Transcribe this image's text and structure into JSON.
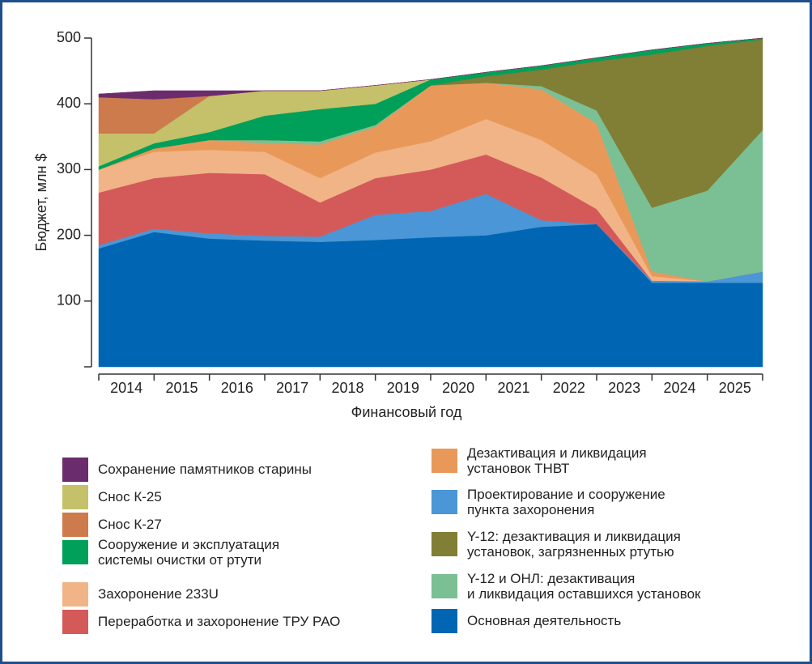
{
  "chart_data": {
    "type": "stacked_area",
    "xlabel": "Финансовый год",
    "ylabel": "Бюджет, млн $",
    "x": [
      2013.5,
      2014.5,
      2015.5,
      2016.5,
      2017.5,
      2018.5,
      2019.5,
      2020.5,
      2021.5,
      2022.5,
      2023.5,
      2024.5,
      2025.5
    ],
    "xlim": [
      2013.5,
      2025.5
    ],
    "xticks": [
      2014,
      2015,
      2016,
      2017,
      2018,
      2019,
      2020,
      2021,
      2022,
      2023,
      2024,
      2025
    ],
    "ylim": [
      0,
      500
    ],
    "yticks": [
      100,
      200,
      300,
      400,
      500
    ],
    "series": [
      {
        "name": "Основная деятельность",
        "color": "#0066b3",
        "values": [
          180,
          205,
          195,
          192,
          190,
          193,
          197,
          200,
          213,
          217,
          128,
          128,
          128
        ]
      },
      {
        "name": "Проектирование и сооружение\nпункта захоронения",
        "color": "#4a96d6",
        "values": [
          5,
          5,
          8,
          7,
          8,
          38,
          40,
          63,
          10,
          0,
          3,
          2,
          17
        ]
      },
      {
        "name": "Переработка и захоронение ТРУ РАО",
        "color": "#d45a5a",
        "values": [
          80,
          77,
          92,
          94,
          52,
          56,
          63,
          60,
          65,
          23,
          0,
          0,
          0
        ]
      },
      {
        "name": "Захоронение 233U",
        "color": "#f0b487",
        "values": [
          35,
          40,
          35,
          34,
          37,
          39,
          43,
          54,
          57,
          53,
          7,
          0,
          0
        ]
      },
      {
        "name": "Дезактивация и ликвидация\nустановок ТНВТ",
        "color": "#e8995a",
        "values": [
          0,
          5,
          15,
          13,
          51,
          39,
          85,
          55,
          77,
          77,
          7,
          0,
          0
        ]
      },
      {
        "name": "Y-12 и ОНЛ: дезактивация\nи ликвидация оставшихся установок",
        "color": "#7bbf94",
        "values": [
          0,
          0,
          0,
          5,
          5,
          3,
          0,
          0,
          5,
          20,
          97,
          138,
          215
        ]
      },
      {
        "name": "Y-12: дезактивация и ликвидация\nустановок, загрязненных ртутью",
        "color": "#817e35",
        "values": [
          0,
          0,
          0,
          0,
          0,
          0,
          0,
          10,
          25,
          75,
          233,
          220,
          138
        ]
      },
      {
        "name": "Сооружение и эксплуатация\nсистемы очистки от ртути",
        "color": "#00a05a",
        "values": [
          5,
          8,
          12,
          37,
          49,
          32,
          9,
          6,
          6,
          5,
          7,
          4,
          2
        ]
      },
      {
        "name": "Снос К-25",
        "color": "#c5c06a",
        "values": [
          50,
          15,
          55,
          38,
          28,
          28,
          0,
          0,
          0,
          0,
          0,
          0,
          0
        ]
      },
      {
        "name": "Снос К-27",
        "color": "#cd7a4c",
        "values": [
          55,
          52,
          0,
          0,
          0,
          0,
          0,
          0,
          0,
          0,
          0,
          0,
          0
        ]
      },
      {
        "name": "Сохранение памятников старины",
        "color": "#6b2c6e",
        "values": [
          5,
          13,
          8,
          0,
          0,
          0,
          0,
          0,
          0,
          0,
          0,
          0,
          0
        ]
      }
    ]
  }
}
